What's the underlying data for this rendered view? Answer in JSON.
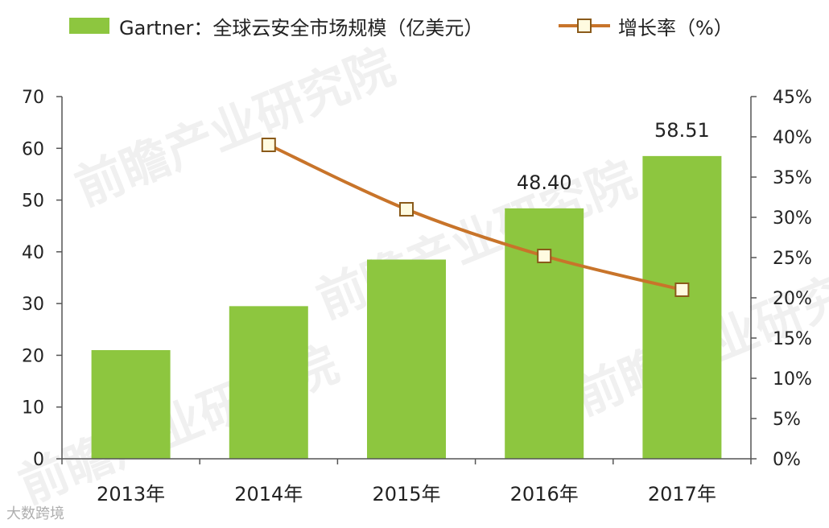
{
  "legend": {
    "bar_label": "Gartner：全球云安全市场规模（亿美元）",
    "line_label": "增长率（%）"
  },
  "watermarks": [
    "前瞻产业研究院",
    "前瞻产业研究院",
    "前瞻产业研究院",
    "前瞻产业研究院"
  ],
  "footer_watermark": "大数跨境",
  "colors": {
    "bar": "#8dc63f",
    "line": "#c8742a",
    "marker_fill": "#fffbe0",
    "marker_stroke": "#8a5a1a",
    "axis": "#555555",
    "text": "#222222"
  },
  "chart_data": {
    "type": "bar",
    "categories": [
      "2013年",
      "2014年",
      "2015年",
      "2016年",
      "2017年"
    ],
    "series": [
      {
        "name": "Gartner：全球云安全市场规模（亿美元）",
        "type": "bar",
        "axis": "left",
        "values": [
          21,
          29.5,
          38.5,
          48.4,
          58.51
        ]
      },
      {
        "name": "增长率（%）",
        "type": "line",
        "axis": "right",
        "values": [
          null,
          39,
          31,
          25.2,
          21
        ]
      }
    ],
    "data_labels": [
      {
        "category": "2016年",
        "text": "48.40"
      },
      {
        "category": "2017年",
        "text": "58.51"
      }
    ],
    "y_left": {
      "ylim": [
        0,
        70
      ],
      "ticks": [
        "0",
        "10",
        "20",
        "30",
        "40",
        "50",
        "60",
        "70"
      ]
    },
    "y_right": {
      "ylim": [
        0,
        45
      ],
      "ticks": [
        "0%",
        "5%",
        "10%",
        "15%",
        "20%",
        "25%",
        "30%",
        "35%",
        "40%",
        "45%"
      ]
    },
    "grid": false,
    "legend_position": "top"
  }
}
